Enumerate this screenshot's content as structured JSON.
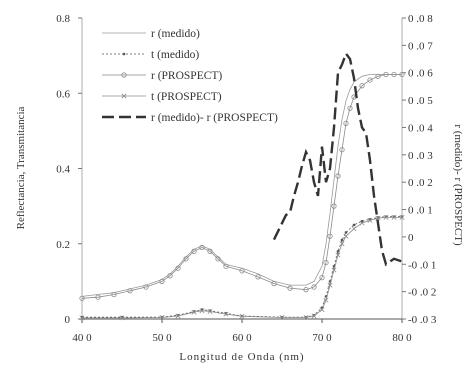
{
  "chart_data": {
    "type": "line",
    "xlabel": "Longitud de Onda (nm)",
    "ylabel": "Reflectancia, Transmitancia",
    "y2label": "r (medido)- r (PROSPECT)",
    "xlim": [
      400,
      800
    ],
    "ylim": [
      0,
      0.8
    ],
    "y2lim": [
      -0.03,
      0.08
    ],
    "x_ticks": [
      "40 0",
      "50 0",
      "60 0",
      "70 0",
      "80 0"
    ],
    "x_tick_values": [
      400,
      500,
      600,
      700,
      800
    ],
    "y_ticks": [
      "0",
      "0.2",
      "0.4",
      "0.6",
      "0.8"
    ],
    "y_tick_values": [
      0,
      0.2,
      0.4,
      0.6,
      0.8
    ],
    "y2_ticks": [
      "-0 .0 3",
      "-0 .0 2",
      "-0 .0 1",
      "0",
      "0 .0 1",
      "0 .0 2",
      "0 .0 3",
      "0 .0 4",
      "0 .0 5",
      "0 .0 6",
      "0 .0 7",
      "0 .0 8"
    ],
    "y2_tick_values": [
      -0.03,
      -0.02,
      -0.01,
      0,
      0.01,
      0.02,
      0.03,
      0.04,
      0.05,
      0.06,
      0.07,
      0.08
    ],
    "grid": false,
    "legend_position": "top-center",
    "series": [
      {
        "name": "r (medido)",
        "axis": "left",
        "color": "#9a9a9a",
        "style": "thin-line",
        "x": [
          400,
          420,
          440,
          460,
          480,
          500,
          510,
          520,
          530,
          540,
          550,
          560,
          570,
          580,
          600,
          620,
          640,
          660,
          680,
          690,
          700,
          705,
          710,
          715,
          720,
          725,
          730,
          735,
          740,
          750,
          760,
          770,
          780,
          790,
          800
        ],
        "y": [
          0.06,
          0.065,
          0.07,
          0.08,
          0.09,
          0.105,
          0.12,
          0.14,
          0.165,
          0.185,
          0.195,
          0.185,
          0.165,
          0.145,
          0.135,
          0.12,
          0.1,
          0.09,
          0.09,
          0.1,
          0.14,
          0.2,
          0.28,
          0.37,
          0.46,
          0.53,
          0.58,
          0.61,
          0.63,
          0.645,
          0.65,
          0.65,
          0.65,
          0.65,
          0.65
        ]
      },
      {
        "name": "t (medido)",
        "axis": "left",
        "color": "#555555",
        "style": "dotted-line",
        "x": [
          400,
          450,
          500,
          520,
          540,
          550,
          560,
          580,
          600,
          650,
          680,
          690,
          700,
          705,
          710,
          715,
          720,
          725,
          730,
          740,
          750,
          760,
          770,
          780,
          790,
          800
        ],
        "y": [
          0.005,
          0.005,
          0.005,
          0.01,
          0.02,
          0.025,
          0.022,
          0.015,
          0.008,
          0.005,
          0.005,
          0.01,
          0.03,
          0.06,
          0.1,
          0.14,
          0.18,
          0.21,
          0.23,
          0.25,
          0.26,
          0.265,
          0.27,
          0.272,
          0.272,
          0.272
        ]
      },
      {
        "name": "r (PROSPECT)",
        "axis": "left",
        "color": "#8a8a8a",
        "style": "circle-markers",
        "x": [
          400,
          420,
          440,
          460,
          480,
          500,
          510,
          520,
          530,
          540,
          550,
          560,
          570,
          580,
          600,
          620,
          640,
          660,
          680,
          690,
          700,
          705,
          710,
          715,
          720,
          725,
          730,
          735,
          740,
          750,
          760,
          770,
          780,
          790,
          800
        ],
        "y": [
          0.055,
          0.058,
          0.065,
          0.075,
          0.085,
          0.1,
          0.115,
          0.135,
          0.16,
          0.18,
          0.19,
          0.18,
          0.16,
          0.14,
          0.128,
          0.112,
          0.094,
          0.082,
          0.078,
          0.085,
          0.11,
          0.15,
          0.22,
          0.3,
          0.38,
          0.45,
          0.52,
          0.56,
          0.59,
          0.62,
          0.635,
          0.645,
          0.65,
          0.65,
          0.65
        ]
      },
      {
        "name": "t (PROSPECT)",
        "axis": "left",
        "color": "#8a8a8a",
        "style": "x-markers",
        "x": [
          400,
          450,
          500,
          520,
          540,
          550,
          560,
          580,
          600,
          650,
          680,
          690,
          700,
          705,
          710,
          715,
          720,
          725,
          730,
          740,
          750,
          760,
          770,
          780,
          790,
          800
        ],
        "y": [
          0.003,
          0.003,
          0.004,
          0.008,
          0.018,
          0.022,
          0.02,
          0.013,
          0.007,
          0.004,
          0.004,
          0.008,
          0.025,
          0.05,
          0.09,
          0.13,
          0.17,
          0.2,
          0.22,
          0.24,
          0.255,
          0.262,
          0.268,
          0.27,
          0.27,
          0.27
        ]
      },
      {
        "name": "r (medido)- r (PROSPECT)",
        "axis": "right",
        "color": "#333333",
        "style": "long-dash",
        "x": [
          640,
          650,
          655,
          660,
          665,
          670,
          675,
          680,
          685,
          690,
          695,
          700,
          705,
          710,
          715,
          720,
          725,
          730,
          735,
          740,
          745,
          750,
          755,
          760,
          765,
          770,
          775,
          780,
          790,
          800
        ],
        "y": [
          -0.001,
          0.005,
          0.008,
          0.009,
          0.015,
          0.02,
          0.026,
          0.031,
          0.028,
          0.02,
          0.015,
          0.033,
          0.02,
          0.025,
          0.04,
          0.06,
          0.063,
          0.067,
          0.065,
          0.058,
          0.047,
          0.04,
          0.038,
          0.028,
          0.015,
          0.005,
          -0.005,
          -0.01,
          -0.008,
          -0.009
        ]
      }
    ]
  }
}
